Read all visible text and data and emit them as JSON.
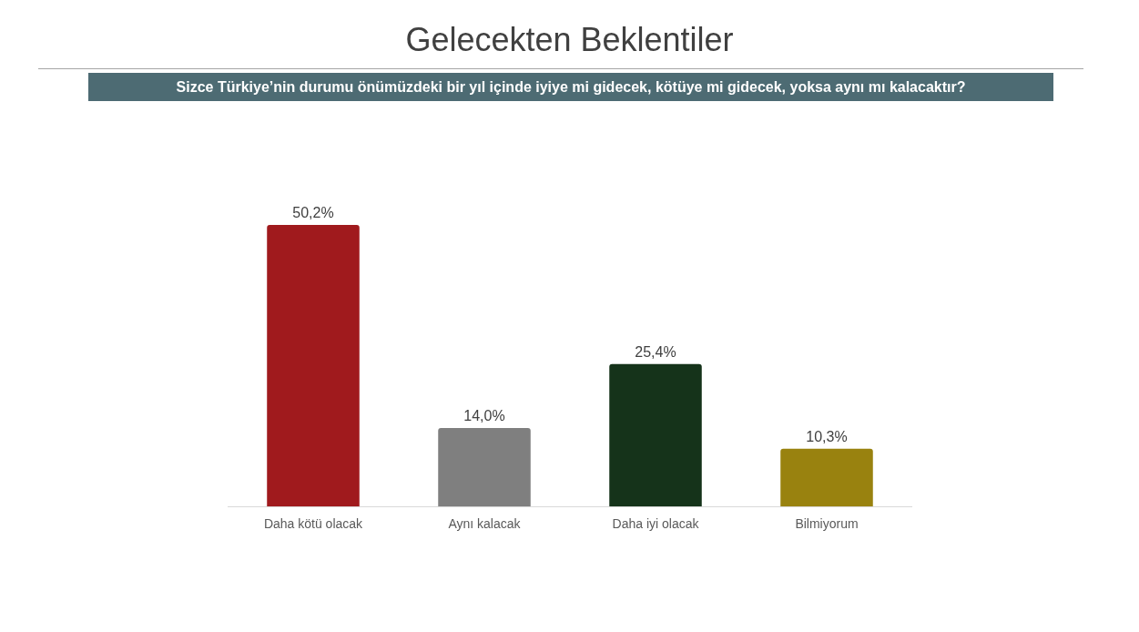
{
  "chart_data": {
    "type": "bar",
    "title": "Gelecekten Beklentiler",
    "subtitle": "Sizce Türkiye’nin durumu önümüzdeki bir yıl içinde iyiye mi gidecek, kötüye mi gidecek, yoksa aynı mı kalacaktır?",
    "categories": [
      "Daha kötü olacak",
      "Aynı kalacak",
      "Daha iyi olacak",
      "Bilmiyorum"
    ],
    "values": [
      50.2,
      14.0,
      25.4,
      10.3
    ],
    "colors": [
      "#a01a1d",
      "#7f7f7f",
      "#15331a",
      "#99820f"
    ],
    "value_labels": [
      "50,2%",
      "14,0%",
      "25,4%",
      "10,3%"
    ]
  }
}
